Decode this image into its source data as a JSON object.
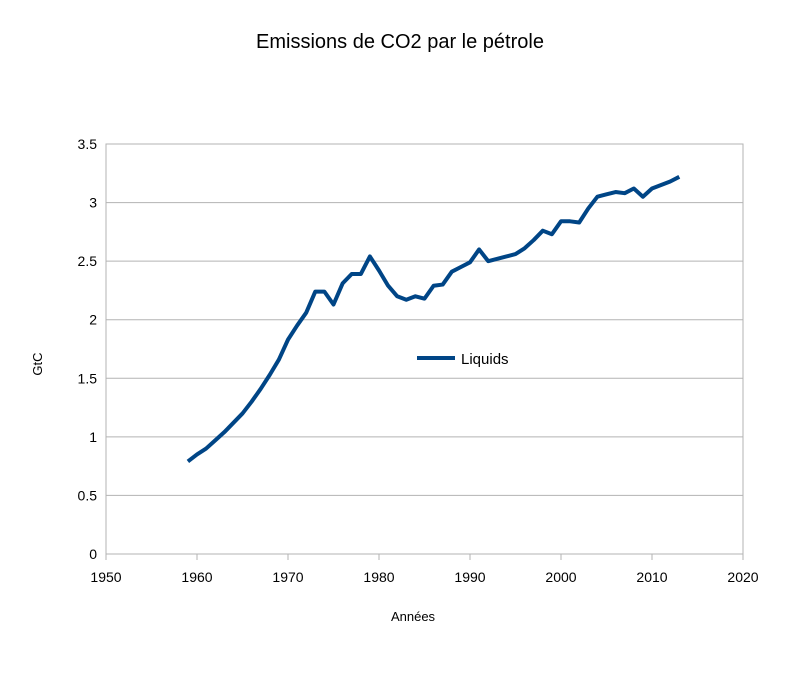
{
  "chart_data": {
    "type": "line",
    "title": "Emissions de CO2 par le pétrole",
    "xlabel": "Années",
    "ylabel": "GtC",
    "xlim": [
      1950,
      2020
    ],
    "ylim": [
      0,
      3.5
    ],
    "x_ticks": [
      "1950",
      "1960",
      "1970",
      "1980",
      "1990",
      "2000",
      "2010",
      "2020"
    ],
    "y_ticks": [
      "0",
      "0.5",
      "1",
      "1.5",
      "2",
      "2.5",
      "3",
      "3.5"
    ],
    "grid": "horizontal",
    "legend": {
      "position": "center-inside",
      "entries": [
        "Liquids"
      ]
    },
    "series": [
      {
        "name": "Liquids",
        "color": "#004586",
        "x": [
          1959,
          1960,
          1961,
          1962,
          1963,
          1964,
          1965,
          1966,
          1967,
          1968,
          1969,
          1970,
          1971,
          1972,
          1973,
          1974,
          1975,
          1976,
          1977,
          1978,
          1979,
          1980,
          1981,
          1982,
          1983,
          1984,
          1985,
          1986,
          1987,
          1988,
          1989,
          1990,
          1991,
          1992,
          1993,
          1994,
          1995,
          1996,
          1997,
          1998,
          1999,
          2000,
          2001,
          2002,
          2003,
          2004,
          2005,
          2006,
          2007,
          2008,
          2009,
          2010,
          2011,
          2012,
          2013
        ],
        "values": [
          0.79,
          0.85,
          0.9,
          0.97,
          1.04,
          1.12,
          1.2,
          1.3,
          1.41,
          1.53,
          1.66,
          1.83,
          1.95,
          2.06,
          2.24,
          2.24,
          2.13,
          2.31,
          2.39,
          2.39,
          2.54,
          2.42,
          2.29,
          2.2,
          2.17,
          2.2,
          2.18,
          2.29,
          2.3,
          2.41,
          2.45,
          2.49,
          2.6,
          2.5,
          2.52,
          2.54,
          2.56,
          2.61,
          2.68,
          2.76,
          2.73,
          2.84,
          2.84,
          2.83,
          2.95,
          3.05,
          3.07,
          3.09,
          3.08,
          3.12,
          3.05,
          3.12,
          3.15,
          3.18,
          3.22
        ]
      }
    ]
  }
}
